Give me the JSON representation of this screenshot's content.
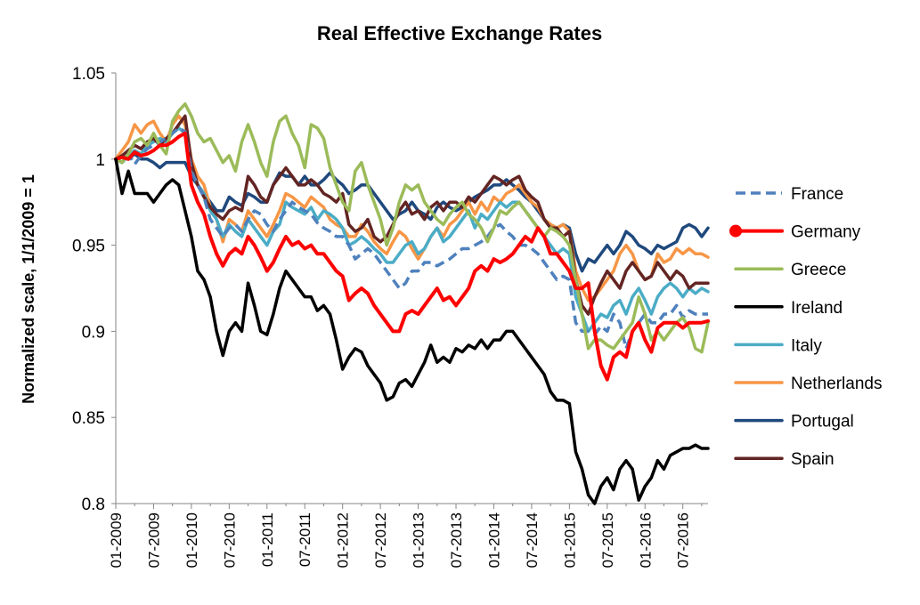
{
  "chart_data": {
    "type": "line",
    "title": "Real Effective Exchange Rates",
    "xlabel": "",
    "ylabel": "Normalized scale, 1/1/2009 = 1",
    "ylim": [
      0.8,
      1.05
    ],
    "yticks": [
      0.8,
      0.85,
      0.9,
      0.95,
      1,
      1.05
    ],
    "ytick_labels": [
      "0.8",
      "0.85",
      "0.9",
      "0.95",
      "1",
      "1.05"
    ],
    "x_months": 95,
    "xticks": [
      0,
      6,
      12,
      18,
      24,
      30,
      36,
      42,
      48,
      54,
      60,
      66,
      72,
      78,
      84,
      90
    ],
    "xtick_labels": [
      "01-2009",
      "07-2009",
      "01-2010",
      "07-2010",
      "01-2011",
      "07-2011",
      "01-2012",
      "07-2012",
      "01-2013",
      "07-2013",
      "01-2014",
      "07-2014",
      "01-2015",
      "07-2015",
      "01-2016",
      "07-2016"
    ],
    "legend_position": "right",
    "series": [
      {
        "name": "France",
        "color": "#4f81bd",
        "dashed": true,
        "width": 3.5,
        "marker": false,
        "values": [
          1,
          0.998,
          1.003,
          0.997,
          1.002,
          1.006,
          1.008,
          1.01,
          1.012,
          1.015,
          1.018,
          1.016,
          0.993,
          0.985,
          0.978,
          0.965,
          0.96,
          0.955,
          0.96,
          0.962,
          0.958,
          0.965,
          0.97,
          0.968,
          0.962,
          0.958,
          0.965,
          0.97,
          0.975,
          0.972,
          0.97,
          0.968,
          0.963,
          0.96,
          0.958,
          0.955,
          0.955,
          0.95,
          0.942,
          0.945,
          0.948,
          0.945,
          0.94,
          0.935,
          0.93,
          0.925,
          0.928,
          0.935,
          0.935,
          0.94,
          0.94,
          0.938,
          0.94,
          0.942,
          0.945,
          0.948,
          0.948,
          0.95,
          0.952,
          0.955,
          0.96,
          0.962,
          0.958,
          0.955,
          0.95,
          0.95,
          0.948,
          0.945,
          0.94,
          0.935,
          0.93,
          0.932,
          0.93,
          0.905,
          0.9,
          0.9,
          0.898,
          0.903,
          0.9,
          0.91,
          0.905,
          0.89,
          0.9,
          0.905,
          0.91,
          0.905,
          0.905,
          0.91,
          0.91,
          0.915,
          0.908,
          0.912,
          0.91,
          0.91,
          0.91
        ]
      },
      {
        "name": "Germany",
        "color": "#ff0000",
        "dashed": false,
        "width": 4,
        "marker": true,
        "values": [
          1,
          1.001,
          1,
          1.004,
          1.002,
          1.003,
          1.005,
          1.008,
          1.008,
          1.01,
          1.013,
          1.015,
          0.985,
          0.975,
          0.968,
          0.955,
          0.945,
          0.938,
          0.945,
          0.948,
          0.945,
          0.955,
          0.95,
          0.943,
          0.935,
          0.94,
          0.948,
          0.955,
          0.95,
          0.952,
          0.948,
          0.95,
          0.945,
          0.945,
          0.94,
          0.935,
          0.932,
          0.918,
          0.922,
          0.925,
          0.922,
          0.915,
          0.91,
          0.905,
          0.9,
          0.9,
          0.91,
          0.912,
          0.91,
          0.915,
          0.92,
          0.925,
          0.918,
          0.92,
          0.915,
          0.92,
          0.925,
          0.935,
          0.938,
          0.935,
          0.942,
          0.94,
          0.942,
          0.945,
          0.95,
          0.955,
          0.952,
          0.96,
          0.955,
          0.945,
          0.945,
          0.94,
          0.935,
          0.925,
          0.925,
          0.928,
          0.9,
          0.88,
          0.872,
          0.885,
          0.888,
          0.885,
          0.9,
          0.905,
          0.895,
          0.888,
          0.902,
          0.905,
          0.905,
          0.905,
          0.902,
          0.905,
          0.905,
          0.905,
          0.906
        ]
      },
      {
        "name": "Greece",
        "color": "#9bbb59",
        "dashed": false,
        "width": 3.5,
        "marker": false,
        "values": [
          1,
          0.998,
          1.003,
          1.01,
          1.012,
          1.008,
          1.015,
          1.008,
          1.003,
          1.022,
          1.028,
          1.032,
          1.025,
          1.015,
          1.01,
          1.012,
          1.005,
          0.998,
          1.002,
          0.993,
          1.01,
          1.02,
          1.01,
          0.998,
          0.99,
          1.01,
          1.022,
          1.025,
          1.015,
          1.008,
          0.995,
          1.02,
          1.018,
          1.012,
          0.995,
          0.985,
          0.975,
          0.97,
          0.993,
          0.998,
          0.985,
          0.975,
          0.965,
          0.95,
          0.96,
          0.975,
          0.985,
          0.982,
          0.985,
          0.975,
          0.97,
          0.965,
          0.962,
          0.968,
          0.972,
          0.975,
          0.968,
          0.965,
          0.96,
          0.952,
          0.96,
          0.97,
          0.968,
          0.972,
          0.975,
          0.97,
          0.965,
          0.96,
          0.955,
          0.96,
          0.958,
          0.955,
          0.95,
          0.93,
          0.91,
          0.89,
          0.895,
          0.895,
          0.892,
          0.89,
          0.895,
          0.9,
          0.905,
          0.92,
          0.91,
          0.895,
          0.9,
          0.895,
          0.9,
          0.905,
          0.908,
          0.902,
          0.89,
          0.888,
          0.905
        ]
      },
      {
        "name": "Ireland",
        "color": "#000000",
        "dashed": false,
        "width": 3.5,
        "marker": false,
        "values": [
          1,
          0.98,
          0.993,
          0.98,
          0.98,
          0.98,
          0.975,
          0.98,
          0.985,
          0.988,
          0.985,
          0.97,
          0.955,
          0.935,
          0.93,
          0.92,
          0.9,
          0.886,
          0.9,
          0.905,
          0.9,
          0.928,
          0.915,
          0.9,
          0.898,
          0.91,
          0.925,
          0.935,
          0.93,
          0.925,
          0.92,
          0.92,
          0.912,
          0.915,
          0.91,
          0.895,
          0.878,
          0.885,
          0.89,
          0.888,
          0.88,
          0.875,
          0.87,
          0.86,
          0.862,
          0.87,
          0.872,
          0.868,
          0.875,
          0.882,
          0.892,
          0.882,
          0.885,
          0.882,
          0.89,
          0.888,
          0.892,
          0.89,
          0.895,
          0.89,
          0.895,
          0.895,
          0.9,
          0.9,
          0.895,
          0.89,
          0.885,
          0.88,
          0.875,
          0.865,
          0.86,
          0.86,
          0.858,
          0.83,
          0.82,
          0.805,
          0.8,
          0.81,
          0.815,
          0.808,
          0.82,
          0.825,
          0.82,
          0.802,
          0.81,
          0.815,
          0.825,
          0.82,
          0.828,
          0.83,
          0.832,
          0.832,
          0.834,
          0.832,
          0.832
        ]
      },
      {
        "name": "Italy",
        "color": "#4bacc6",
        "dashed": false,
        "width": 3.5,
        "marker": false,
        "values": [
          1,
          0.998,
          1.002,
          1.005,
          1.003,
          1.008,
          1.01,
          1.012,
          1.01,
          1.015,
          1.018,
          1.015,
          0.995,
          0.985,
          0.98,
          0.97,
          0.965,
          0.955,
          0.962,
          0.958,
          0.955,
          0.965,
          0.96,
          0.955,
          0.95,
          0.958,
          0.962,
          0.975,
          0.972,
          0.97,
          0.968,
          0.972,
          0.965,
          0.97,
          0.968,
          0.965,
          0.96,
          0.95,
          0.952,
          0.955,
          0.952,
          0.948,
          0.945,
          0.94,
          0.94,
          0.945,
          0.95,
          0.952,
          0.945,
          0.948,
          0.955,
          0.96,
          0.952,
          0.955,
          0.96,
          0.965,
          0.97,
          0.96,
          0.968,
          0.965,
          0.97,
          0.975,
          0.972,
          0.975,
          0.975,
          0.97,
          0.965,
          0.96,
          0.955,
          0.95,
          0.945,
          0.948,
          0.945,
          0.92,
          0.91,
          0.9,
          0.905,
          0.91,
          0.908,
          0.915,
          0.918,
          0.91,
          0.92,
          0.925,
          0.918,
          0.91,
          0.92,
          0.925,
          0.928,
          0.925,
          0.92,
          0.925,
          0.922,
          0.925,
          0.923
        ]
      },
      {
        "name": "Netherlands",
        "color": "#f79646",
        "dashed": false,
        "width": 3.5,
        "marker": false,
        "values": [
          1,
          1.005,
          1.01,
          1.02,
          1.015,
          1.02,
          1.022,
          1.015,
          1.01,
          1.02,
          1.025,
          1.02,
          1.0,
          0.99,
          0.985,
          0.972,
          0.965,
          0.952,
          0.965,
          0.962,
          0.958,
          0.97,
          0.965,
          0.96,
          0.955,
          0.962,
          0.97,
          0.98,
          0.978,
          0.975,
          0.972,
          0.978,
          0.975,
          0.972,
          0.965,
          0.962,
          0.96,
          0.955,
          0.955,
          0.962,
          0.958,
          0.952,
          0.948,
          0.945,
          0.952,
          0.958,
          0.955,
          0.948,
          0.942,
          0.948,
          0.955,
          0.96,
          0.955,
          0.962,
          0.965,
          0.97,
          0.975,
          0.968,
          0.975,
          0.97,
          0.978,
          0.975,
          0.98,
          0.982,
          0.985,
          0.98,
          0.975,
          0.972,
          0.965,
          0.962,
          0.96,
          0.962,
          0.958,
          0.935,
          0.925,
          0.918,
          0.92,
          0.925,
          0.93,
          0.935,
          0.945,
          0.95,
          0.945,
          0.935,
          0.93,
          0.932,
          0.945,
          0.94,
          0.942,
          0.948,
          0.945,
          0.948,
          0.945,
          0.945,
          0.943
        ]
      },
      {
        "name": "Portugal",
        "color": "#1f497d",
        "dashed": false,
        "width": 3.5,
        "marker": false,
        "values": [
          1,
          1.002,
          1.0,
          1.003,
          1.0,
          1.0,
          0.998,
          0.995,
          0.998,
          0.998,
          0.998,
          0.998,
          0.99,
          0.985,
          0.98,
          0.975,
          0.97,
          0.97,
          0.978,
          0.975,
          0.973,
          0.98,
          0.978,
          0.975,
          0.975,
          0.985,
          0.992,
          0.99,
          0.99,
          0.985,
          0.99,
          0.985,
          0.985,
          0.988,
          0.992,
          0.988,
          0.985,
          0.98,
          0.982,
          0.985,
          0.985,
          0.98,
          0.975,
          0.97,
          0.965,
          0.968,
          0.97,
          0.975,
          0.97,
          0.968,
          0.965,
          0.972,
          0.975,
          0.972,
          0.97,
          0.972,
          0.975,
          0.978,
          0.98,
          0.982,
          0.985,
          0.985,
          0.988,
          0.985,
          0.982,
          0.978,
          0.975,
          0.97,
          0.965,
          0.962,
          0.96,
          0.962,
          0.96,
          0.945,
          0.935,
          0.942,
          0.94,
          0.945,
          0.95,
          0.945,
          0.95,
          0.958,
          0.955,
          0.95,
          0.948,
          0.945,
          0.95,
          0.948,
          0.95,
          0.952,
          0.96,
          0.962,
          0.96,
          0.955,
          0.96
        ]
      },
      {
        "name": "Spain",
        "color": "#632523",
        "dashed": false,
        "width": 3.5,
        "marker": false,
        "values": [
          1,
          1.002,
          1.005,
          1.008,
          1.006,
          1.01,
          1.012,
          1.008,
          1.012,
          1.015,
          1.02,
          1.025,
          0.998,
          0.985,
          0.978,
          0.972,
          0.968,
          0.965,
          0.97,
          0.972,
          0.97,
          0.99,
          0.985,
          0.978,
          0.975,
          0.985,
          0.99,
          0.995,
          0.99,
          0.985,
          0.985,
          0.988,
          0.985,
          0.98,
          0.978,
          0.975,
          0.98,
          0.962,
          0.958,
          0.96,
          0.965,
          0.955,
          0.952,
          0.955,
          0.962,
          0.97,
          0.975,
          0.968,
          0.97,
          0.965,
          0.972,
          0.975,
          0.97,
          0.975,
          0.975,
          0.972,
          0.978,
          0.975,
          0.98,
          0.985,
          0.99,
          0.988,
          0.985,
          0.988,
          0.99,
          0.982,
          0.978,
          0.975,
          0.965,
          0.96,
          0.96,
          0.955,
          0.958,
          0.93,
          0.915,
          0.91,
          0.92,
          0.928,
          0.935,
          0.93,
          0.925,
          0.935,
          0.94,
          0.935,
          0.93,
          0.932,
          0.94,
          0.935,
          0.93,
          0.935,
          0.932,
          0.925,
          0.928,
          0.928,
          0.928
        ]
      }
    ]
  }
}
